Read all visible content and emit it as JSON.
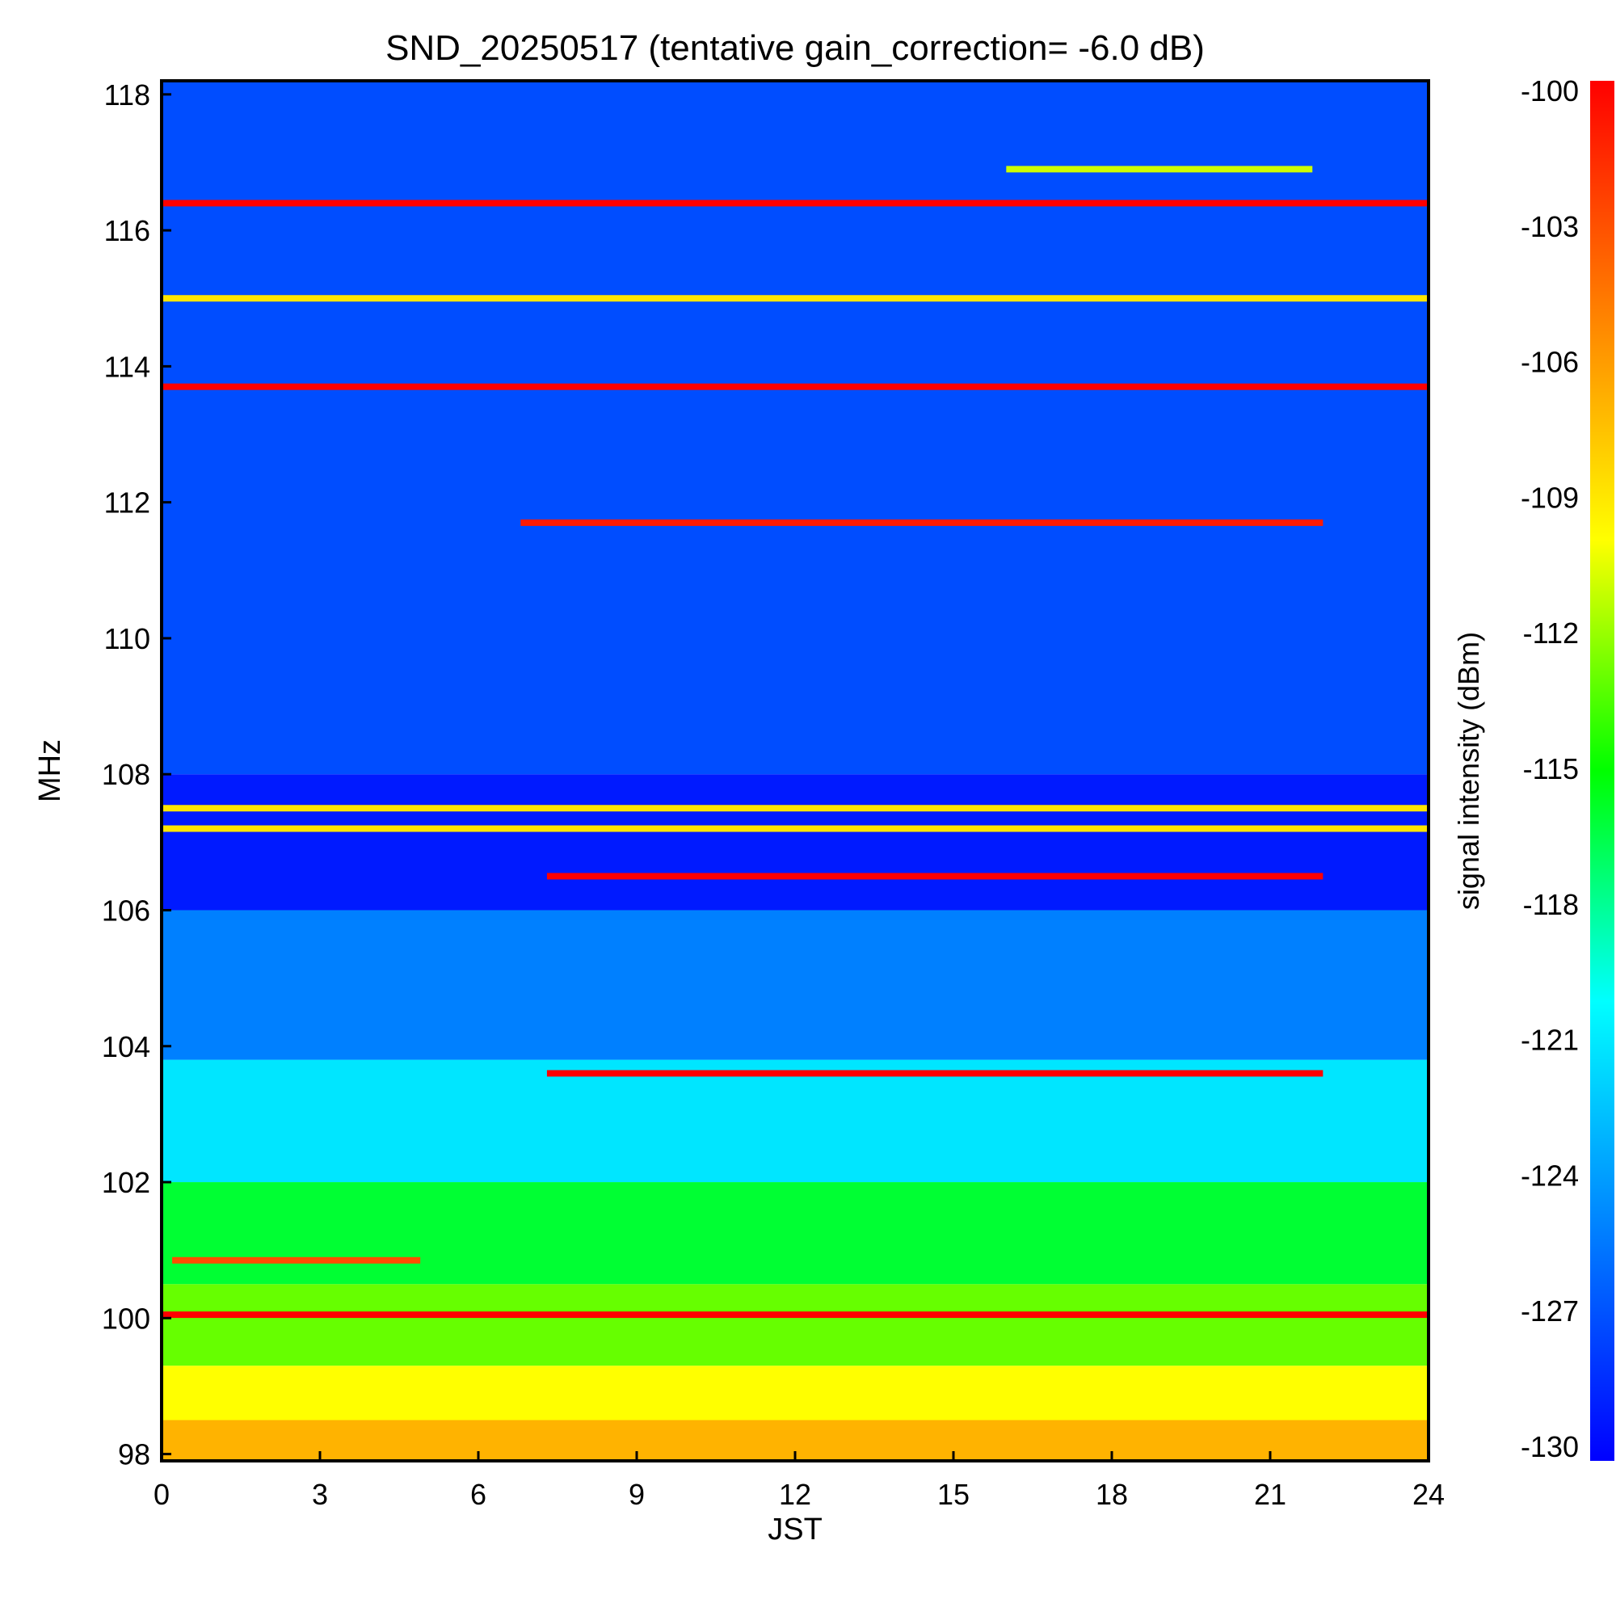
{
  "chart_data": {
    "type": "heatmap",
    "title": "SND_20250517 (tentative gain_correction= -6.0 dB)",
    "xlabel": "JST",
    "ylabel": "MHz",
    "colorbar_label": "signal intensity (dBm)",
    "xlim": [
      0,
      24
    ],
    "ylim": [
      97.9,
      118.2
    ],
    "clim": [
      -130,
      -100
    ],
    "x_ticks": [
      "0",
      "3",
      "6",
      "9",
      "12",
      "15",
      "18",
      "21",
      "24"
    ],
    "y_ticks": [
      "98",
      "100",
      "102",
      "104",
      "106",
      "108",
      "110",
      "112",
      "114",
      "116",
      "118"
    ],
    "colorbar_ticks": [
      "-100",
      "-103",
      "-106",
      "-109",
      "-112",
      "-115",
      "-118",
      "-121",
      "-124",
      "-127",
      "-130"
    ],
    "colormap": [
      "#0000ff",
      "#0080ff",
      "#00ffff",
      "#00ff00",
      "#ffff00",
      "#ff8000",
      "#ff0000"
    ],
    "noise_floor": [
      {
        "f_from": 97.9,
        "f_to": 98.5,
        "dbm": -107
      },
      {
        "f_from": 98.5,
        "f_to": 99.3,
        "dbm": -110
      },
      {
        "f_from": 99.3,
        "f_to": 100.5,
        "dbm": -113
      },
      {
        "f_from": 100.5,
        "f_to": 102.0,
        "dbm": -116
      },
      {
        "f_from": 102.0,
        "f_to": 103.8,
        "dbm": -121
      },
      {
        "f_from": 103.8,
        "f_to": 106.0,
        "dbm": -125
      },
      {
        "f_from": 106.0,
        "f_to": 108.0,
        "dbm": -129
      },
      {
        "f_from": 108.0,
        "f_to": 118.2,
        "dbm": -127
      }
    ],
    "signals": [
      {
        "freq": 116.4,
        "t_start": 0,
        "t_end": 24,
        "dbm": -100
      },
      {
        "freq": 115.0,
        "t_start": 0,
        "t_end": 24,
        "dbm": -109
      },
      {
        "freq": 113.7,
        "t_start": 0,
        "t_end": 24,
        "dbm": -100
      },
      {
        "freq": 111.7,
        "t_start": 6.8,
        "t_end": 22.0,
        "dbm": -101
      },
      {
        "freq": 116.9,
        "t_start": 16.0,
        "t_end": 21.8,
        "dbm": -111
      },
      {
        "freq": 107.5,
        "t_start": 0,
        "t_end": 24,
        "dbm": -109
      },
      {
        "freq": 107.2,
        "t_start": 0,
        "t_end": 24,
        "dbm": -109
      },
      {
        "freq": 106.5,
        "t_start": 7.3,
        "t_end": 22.0,
        "dbm": -100
      },
      {
        "freq": 103.6,
        "t_start": 7.3,
        "t_end": 22.0,
        "dbm": -100
      },
      {
        "freq": 100.05,
        "t_start": 0,
        "t_end": 24,
        "dbm": -100
      },
      {
        "freq": 100.85,
        "t_start": 0.2,
        "t_end": 4.9,
        "dbm": -103
      }
    ]
  }
}
